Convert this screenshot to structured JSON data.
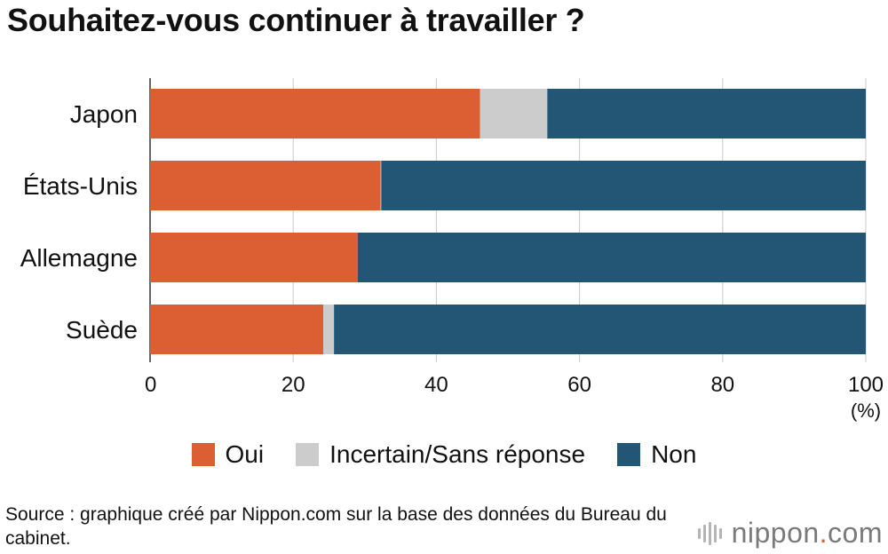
{
  "title": "Souhaitez-vous continuer à travailler ?",
  "chart_data": {
    "type": "bar",
    "orientation": "horizontal",
    "stacked": true,
    "categories": [
      "Japon",
      "États-Unis",
      "Allemagne",
      "Suède"
    ],
    "series": [
      {
        "name": "Oui",
        "color": "#dc5f33",
        "values": [
          46.1,
          32.2,
          29.0,
          24.2
        ]
      },
      {
        "name": "Incertain/Sans réponse",
        "color": "#cccccc",
        "values": [
          9.4,
          0.1,
          0.0,
          1.5
        ]
      },
      {
        "name": "Non",
        "color": "#235574",
        "values": [
          44.5,
          67.7,
          71.0,
          74.3
        ]
      }
    ],
    "xlim": [
      0,
      100
    ],
    "xticks": [
      "0",
      "20",
      "40",
      "60",
      "80",
      "100"
    ],
    "xunit": "(%)",
    "grid": true,
    "legend_position": "bottom"
  },
  "source": "Source : graphique créé par Nippon.com sur la base des données du Bureau du cabinet.",
  "brand": {
    "name": "nippon",
    "dot": ".",
    "tld": "com"
  }
}
